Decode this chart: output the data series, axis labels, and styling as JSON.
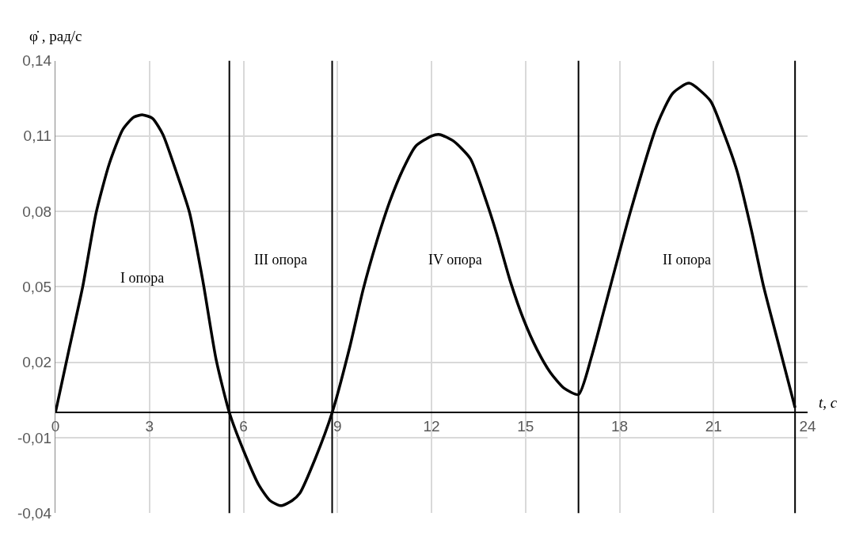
{
  "chart_data": {
    "type": "line",
    "xlabel": "t, с",
    "ylabel": "φ̇ , рад/с",
    "series": [
      {
        "color": "#000000",
        "x": [
          0,
          0.45,
          0.87,
          1.3,
          1.72,
          2.15,
          2.5,
          2.79,
          3.1,
          3.43,
          3.85,
          4.28,
          4.71,
          5.13,
          5.55,
          6.0,
          6.5,
          6.85,
          7.2,
          7.55,
          7.8,
          8.3,
          8.83,
          9.39,
          9.82,
          10.25,
          10.67,
          11.1,
          11.5,
          12.0,
          12.26,
          12.7,
          13.24,
          13.75,
          14.09,
          14.52,
          14.94,
          15.37,
          15.79,
          16.22,
          16.69,
          17.1,
          17.5,
          18.35,
          19.2,
          19.7,
          20.22,
          20.9,
          21.3,
          21.75,
          22.2,
          22.6,
          23.1,
          23.6
        ],
        "values": [
          0,
          0.026,
          0.05,
          0.0795,
          0.099,
          0.1126,
          0.1175,
          0.1184,
          0.117,
          0.1106,
          0.096,
          0.0795,
          0.052,
          0.021,
          0,
          -0.015,
          -0.029,
          -0.035,
          -0.037,
          -0.035,
          -0.032,
          -0.018,
          0,
          0.026,
          0.049,
          0.068,
          0.084,
          0.097,
          0.106,
          0.11,
          0.1106,
          0.108,
          0.101,
          0.084,
          0.0707,
          0.052,
          0.037,
          0.025,
          0.016,
          0.0098,
          0.0072,
          0.022,
          0.0405,
          0.08,
          0.1145,
          0.127,
          0.131,
          0.124,
          0.112,
          0.096,
          0.073,
          0.05,
          0.026,
          0.002
        ]
      }
    ],
    "xlim": [
      0,
      24
    ],
    "xticks": [
      0,
      3,
      6,
      9,
      12,
      15,
      18,
      21,
      24
    ],
    "ylim": [
      -0.04,
      0.14
    ],
    "yticks": [
      {
        "value": -0.04,
        "label": "-0,04"
      },
      {
        "value": -0.01,
        "label": "-0,01"
      },
      {
        "value": 0.02,
        "label": "0,02"
      },
      {
        "value": 0.05,
        "label": "0,05"
      },
      {
        "value": 0.08,
        "label": "0,08"
      },
      {
        "value": 0.11,
        "label": "0,11"
      },
      {
        "value": 0.14,
        "label": "0,14"
      }
    ],
    "grid": true,
    "ref_lines": [
      {
        "axis": "x",
        "value": 5.55,
        "color": "#000000"
      },
      {
        "axis": "x",
        "value": 8.83,
        "color": "#000000"
      },
      {
        "axis": "x",
        "value": 16.69,
        "color": "#000000"
      },
      {
        "axis": "x",
        "value": 23.6,
        "color": "#000000"
      }
    ],
    "annotations": [
      "I опора",
      "III опора",
      "IV опора",
      "II опора"
    ]
  }
}
